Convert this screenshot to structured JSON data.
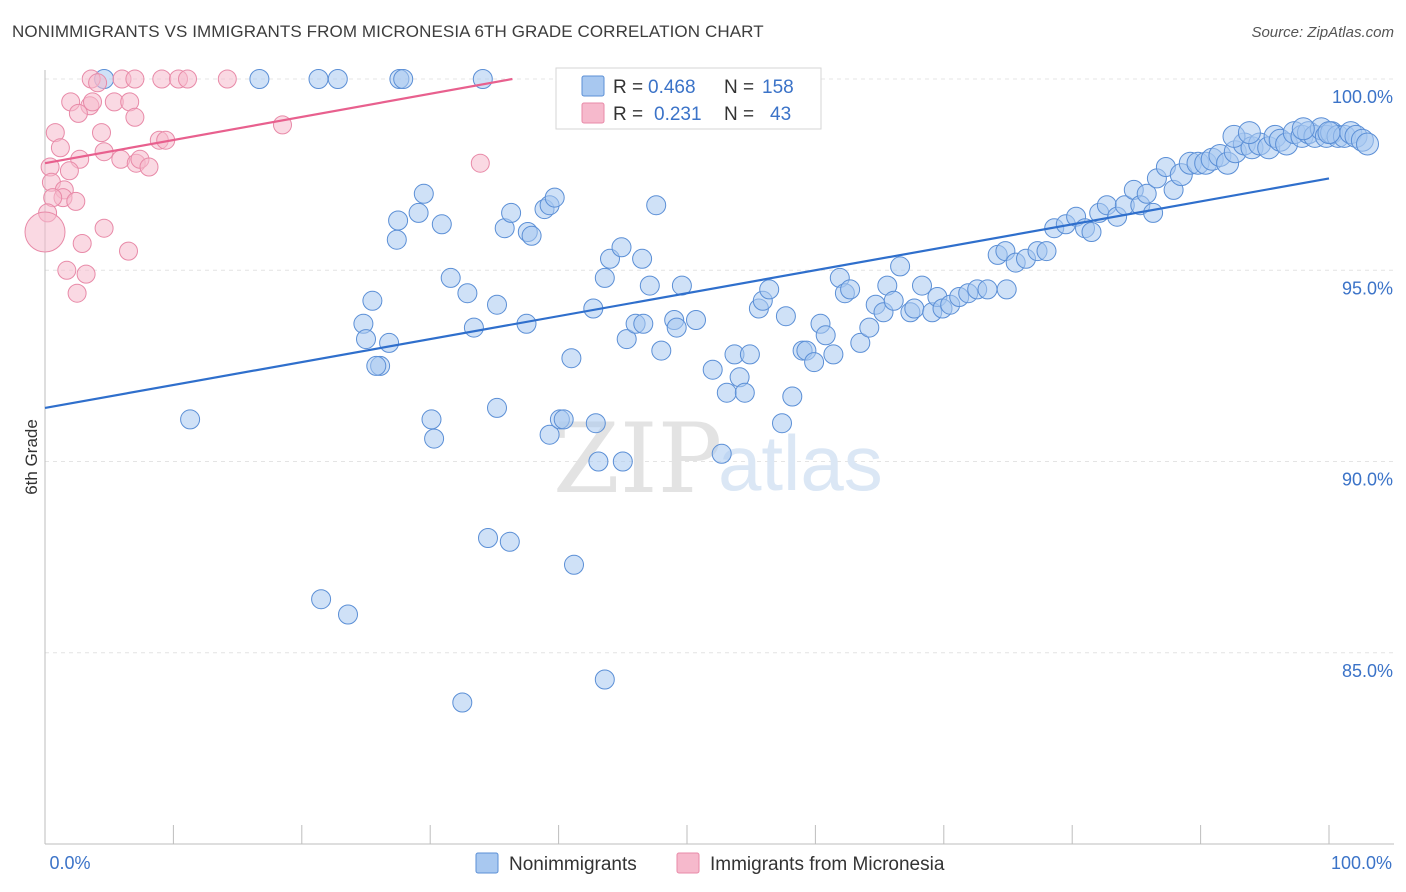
{
  "title": "NONIMMIGRANTS VS IMMIGRANTS FROM MICRONESIA 6TH GRADE CORRELATION CHART",
  "source": "Source: ZipAtlas.com",
  "watermark": {
    "part1": "ZIP",
    "part2": "atlas"
  },
  "chart_data": {
    "type": "scatter",
    "ylabel": "6th Grade",
    "xlabel": "",
    "xlim": [
      0,
      100
    ],
    "ylim": [
      80.0,
      100.0
    ],
    "x_tick_labels": [
      "0.0%",
      "100.0%"
    ],
    "y_ticks": [
      85.0,
      90.0,
      95.0,
      100.0
    ],
    "y_tick_labels": [
      "85.0%",
      "90.0%",
      "95.0%",
      "100.0%"
    ],
    "grid": true,
    "legend_position": "top-center",
    "series": [
      {
        "name": "Nonimmigrants",
        "color": "#a8c8f0",
        "edge": "#5b8fd6",
        "line_color": "#2f6fcc",
        "r": "0.468",
        "n": "158",
        "trend": {
          "x": [
            0,
            100
          ],
          "y": [
            91.4,
            97.4
          ]
        },
        "points": [
          [
            4.6,
            100
          ],
          [
            16.7,
            100
          ],
          [
            21.3,
            100
          ],
          [
            22.8,
            100
          ],
          [
            27.6,
            100
          ],
          [
            27.9,
            100
          ],
          [
            34.1,
            100
          ],
          [
            11.3,
            91.1
          ],
          [
            25.5,
            94.2
          ],
          [
            24.8,
            93.6
          ],
          [
            25.0,
            93.2
          ],
          [
            26.1,
            92.5
          ],
          [
            25.8,
            92.5
          ],
          [
            26.8,
            93.1
          ],
          [
            27.4,
            95.8
          ],
          [
            27.5,
            96.3
          ],
          [
            29.1,
            96.5
          ],
          [
            29.5,
            97.0
          ],
          [
            30.9,
            96.2
          ],
          [
            31.6,
            94.8
          ],
          [
            32.9,
            94.4
          ],
          [
            33.4,
            93.5
          ],
          [
            34.5,
            88.0
          ],
          [
            35.2,
            94.1
          ],
          [
            35.8,
            96.1
          ],
          [
            36.3,
            96.5
          ],
          [
            37.5,
            93.6
          ],
          [
            37.6,
            96.0
          ],
          [
            37.9,
            95.9
          ],
          [
            38.9,
            96.6
          ],
          [
            39.3,
            96.7
          ],
          [
            39.7,
            96.9
          ],
          [
            30.1,
            91.1
          ],
          [
            30.3,
            90.6
          ],
          [
            35.2,
            91.4
          ],
          [
            39.3,
            90.7
          ],
          [
            40.1,
            91.1
          ],
          [
            40.4,
            91.1
          ],
          [
            41.0,
            92.7
          ],
          [
            41.2,
            87.3
          ],
          [
            42.7,
            94.0
          ],
          [
            42.9,
            91.0
          ],
          [
            43.1,
            90.0
          ],
          [
            43.6,
            94.8
          ],
          [
            44.0,
            95.3
          ],
          [
            44.9,
            95.6
          ],
          [
            45.0,
            90.0
          ],
          [
            45.3,
            93.2
          ],
          [
            46.0,
            93.6
          ],
          [
            46.5,
            95.3
          ],
          [
            46.6,
            93.6
          ],
          [
            47.1,
            94.6
          ],
          [
            47.6,
            96.7
          ],
          [
            48.0,
            92.9
          ],
          [
            49.0,
            93.7
          ],
          [
            49.2,
            93.5
          ],
          [
            49.6,
            94.6
          ],
          [
            50.7,
            93.7
          ],
          [
            52.0,
            92.4
          ],
          [
            52.7,
            90.2
          ],
          [
            53.1,
            91.8
          ],
          [
            53.7,
            92.8
          ],
          [
            54.1,
            92.2
          ],
          [
            54.5,
            91.8
          ],
          [
            54.9,
            92.8
          ],
          [
            55.6,
            94.0
          ],
          [
            55.9,
            94.2
          ],
          [
            56.4,
            94.5
          ],
          [
            57.4,
            91.0
          ],
          [
            57.7,
            93.8
          ],
          [
            58.2,
            91.7
          ],
          [
            59.0,
            92.9
          ],
          [
            59.3,
            92.9
          ],
          [
            59.9,
            92.6
          ],
          [
            60.4,
            93.6
          ],
          [
            60.8,
            93.3
          ],
          [
            61.4,
            92.8
          ],
          [
            61.9,
            94.8
          ],
          [
            62.3,
            94.4
          ],
          [
            62.7,
            94.5
          ],
          [
            63.5,
            93.1
          ],
          [
            64.2,
            93.5
          ],
          [
            64.7,
            94.1
          ],
          [
            65.3,
            93.9
          ],
          [
            65.6,
            94.6
          ],
          [
            66.1,
            94.2
          ],
          [
            66.6,
            95.1
          ],
          [
            67.4,
            93.9
          ],
          [
            67.7,
            94.0
          ],
          [
            68.3,
            94.6
          ],
          [
            69.1,
            93.9
          ],
          [
            69.5,
            94.3
          ],
          [
            69.9,
            94.0
          ],
          [
            70.5,
            94.1
          ],
          [
            71.2,
            94.3
          ],
          [
            71.9,
            94.4
          ],
          [
            72.6,
            94.5
          ],
          [
            73.4,
            94.5
          ],
          [
            74.2,
            95.4
          ],
          [
            74.8,
            95.5
          ],
          [
            75.6,
            95.2
          ],
          [
            76.4,
            95.3
          ],
          [
            77.3,
            95.5
          ],
          [
            78.0,
            95.5
          ],
          [
            78.6,
            96.1
          ],
          [
            79.5,
            96.2
          ],
          [
            80.3,
            96.4
          ],
          [
            81.0,
            96.1
          ],
          [
            81.5,
            96.0
          ],
          [
            82.1,
            96.5
          ],
          [
            82.7,
            96.7
          ],
          [
            83.5,
            96.4
          ],
          [
            84.1,
            96.7
          ],
          [
            84.8,
            97.1
          ],
          [
            85.3,
            96.7
          ],
          [
            85.8,
            97.0
          ],
          [
            86.6,
            97.4
          ],
          [
            87.3,
            97.7
          ],
          [
            87.9,
            97.1
          ],
          [
            88.5,
            97.5
          ],
          [
            89.2,
            97.8
          ],
          [
            89.8,
            97.8
          ],
          [
            90.4,
            97.8
          ],
          [
            90.9,
            97.9
          ],
          [
            91.5,
            98.0
          ],
          [
            92.1,
            97.8
          ],
          [
            92.7,
            98.1
          ],
          [
            93.4,
            98.3
          ],
          [
            94.0,
            98.2
          ],
          [
            94.6,
            98.3
          ],
          [
            95.3,
            98.2
          ],
          [
            95.8,
            98.5
          ],
          [
            96.2,
            98.4
          ],
          [
            96.7,
            98.3
          ],
          [
            97.3,
            98.6
          ],
          [
            97.9,
            98.5
          ],
          [
            98.4,
            98.6
          ],
          [
            98.9,
            98.5
          ],
          [
            99.4,
            98.7
          ],
          [
            99.8,
            98.5
          ],
          [
            100.2,
            98.6
          ],
          [
            100.7,
            98.5
          ],
          [
            101.2,
            98.5
          ],
          [
            101.7,
            98.6
          ],
          [
            102.1,
            98.5
          ],
          [
            102.6,
            98.4
          ],
          [
            103.0,
            98.3
          ],
          [
            92.6,
            98.5
          ],
          [
            93.8,
            98.6
          ],
          [
            98.0,
            98.7
          ],
          [
            100.0,
            98.6
          ],
          [
            74.9,
            94.5
          ],
          [
            86.3,
            96.5
          ],
          [
            36.2,
            87.9
          ],
          [
            23.6,
            86.0
          ],
          [
            21.5,
            86.4
          ],
          [
            43.6,
            84.3
          ],
          [
            32.5,
            83.7
          ]
        ]
      },
      {
        "name": "Immigrants from Micronesia",
        "color": "#f6b9cc",
        "edge": "#e88aa8",
        "line_color": "#e8608e",
        "r": "0.231",
        "n": "43",
        "trend": {
          "x": [
            0,
            36.4
          ],
          "y": [
            97.8,
            100.0
          ]
        },
        "points": [
          [
            3.6,
            100
          ],
          [
            6.0,
            100
          ],
          [
            7.0,
            100
          ],
          [
            9.1,
            100
          ],
          [
            10.4,
            100
          ],
          [
            11.1,
            100
          ],
          [
            14.2,
            100
          ],
          [
            4.1,
            99.9
          ],
          [
            2.0,
            99.4
          ],
          [
            3.5,
            99.3
          ],
          [
            3.7,
            99.4
          ],
          [
            5.4,
            99.4
          ],
          [
            6.6,
            99.4
          ],
          [
            2.6,
            99.1
          ],
          [
            7.0,
            99.0
          ],
          [
            0.8,
            98.6
          ],
          [
            4.4,
            98.6
          ],
          [
            8.9,
            98.4
          ],
          [
            9.4,
            98.4
          ],
          [
            18.5,
            98.8
          ],
          [
            1.2,
            98.2
          ],
          [
            4.6,
            98.1
          ],
          [
            5.9,
            97.9
          ],
          [
            7.1,
            97.8
          ],
          [
            7.4,
            97.9
          ],
          [
            2.7,
            97.9
          ],
          [
            0.4,
            97.7
          ],
          [
            1.9,
            97.6
          ],
          [
            8.1,
            97.7
          ],
          [
            0.5,
            97.3
          ],
          [
            1.5,
            97.1
          ],
          [
            1.4,
            96.9
          ],
          [
            2.4,
            96.8
          ],
          [
            0.6,
            96.9
          ],
          [
            33.9,
            97.8
          ],
          [
            0.2,
            96.5
          ],
          [
            0.0,
            96.0
          ],
          [
            4.6,
            96.1
          ],
          [
            2.9,
            95.7
          ],
          [
            6.5,
            95.5
          ],
          [
            3.2,
            94.9
          ],
          [
            2.5,
            94.4
          ],
          [
            1.7,
            95.0
          ]
        ]
      }
    ]
  }
}
